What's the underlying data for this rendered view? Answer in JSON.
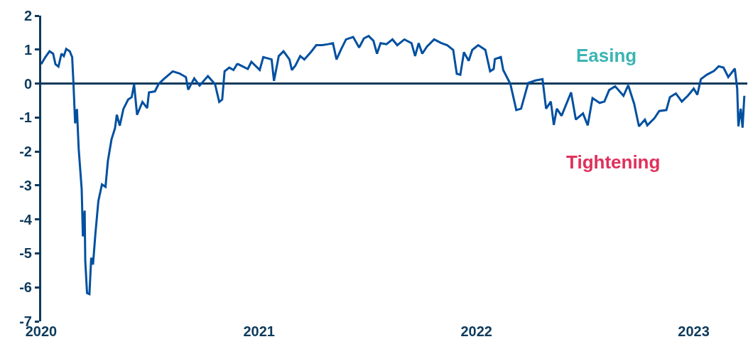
{
  "chart_data": {
    "type": "line",
    "annotations": [
      "Easing",
      "Tightening"
    ],
    "x": [
      "2020-01-01",
      "2020-01-08",
      "2020-01-15",
      "2020-01-21",
      "2020-01-25",
      "2020-01-30",
      "2020-02-04",
      "2020-02-08",
      "2020-02-12",
      "2020-02-18",
      "2020-02-22",
      "2020-02-24",
      "2020-02-27",
      "2020-03-01",
      "2020-03-04",
      "2020-03-09",
      "2020-03-11",
      "2020-03-14",
      "2020-03-15",
      "2020-03-18",
      "2020-03-22",
      "2020-03-25",
      "2020-03-28",
      "2020-04-01",
      "2020-04-06",
      "2020-04-12",
      "2020-04-18",
      "2020-04-22",
      "2020-04-28",
      "2020-05-04",
      "2020-05-07",
      "2020-05-12",
      "2020-05-18",
      "2020-05-26",
      "2020-06-01",
      "2020-06-05",
      "2020-06-10",
      "2020-06-19",
      "2020-06-27",
      "2020-06-30",
      "2020-07-10",
      "2020-07-16",
      "2020-07-24",
      "2020-08-09",
      "2020-08-21",
      "2020-08-31",
      "2020-09-04",
      "2020-09-14",
      "2020-09-23",
      "2020-10-07",
      "2020-10-19",
      "2020-10-26",
      "2020-10-31",
      "2020-11-04",
      "2020-11-12",
      "2020-11-19",
      "2020-11-25",
      "2020-11-27",
      "2020-12-13",
      "2020-12-19",
      "2021-01-02",
      "2021-01-08",
      "2021-01-22",
      "2021-01-26",
      "2021-02-03",
      "2021-02-11",
      "2021-02-21",
      "2021-02-25",
      "2021-03-03",
      "2021-03-11",
      "2021-03-18",
      "2021-03-30",
      "2021-04-07",
      "2021-04-17",
      "2021-04-27",
      "2021-05-05",
      "2021-05-11",
      "2021-05-19",
      "2021-05-27",
      "2021-06-08",
      "2021-06-18",
      "2021-06-26",
      "2021-07-04",
      "2021-07-12",
      "2021-07-18",
      "2021-07-24",
      "2021-08-03",
      "2021-08-13",
      "2021-08-21",
      "2021-09-02",
      "2021-09-14",
      "2021-09-20",
      "2021-09-26",
      "2021-10-02",
      "2021-10-10",
      "2021-10-22",
      "2021-11-03",
      "2021-11-13",
      "2021-11-23",
      "2021-11-29",
      "2021-12-05",
      "2021-12-11",
      "2021-12-19",
      "2021-12-25",
      "2022-01-04",
      "2022-01-16",
      "2022-01-24",
      "2022-01-30",
      "2022-02-01",
      "2022-02-11",
      "2022-02-15",
      "2022-02-27",
      "2022-03-09",
      "2022-03-17",
      "2022-03-29",
      "2022-04-10",
      "2022-04-22",
      "2022-04-28",
      "2022-05-06",
      "2022-05-11",
      "2022-05-16",
      "2022-05-24",
      "2022-06-09",
      "2022-06-17",
      "2022-06-29",
      "2022-07-07",
      "2022-07-15",
      "2022-07-27",
      "2022-08-04",
      "2022-08-12",
      "2022-08-22",
      "2022-09-05",
      "2022-09-13",
      "2022-09-23",
      "2022-10-01",
      "2022-10-11",
      "2022-10-15",
      "2022-10-27",
      "2022-11-04",
      "2022-11-16",
      "2022-11-22",
      "2022-12-02",
      "2022-12-12",
      "2022-12-22",
      "2023-01-01",
      "2023-01-07",
      "2023-01-13",
      "2023-01-23",
      "2023-02-04",
      "2023-02-12",
      "2023-02-20",
      "2023-02-28",
      "2023-03-11",
      "2023-03-15",
      "2023-03-17",
      "2023-03-21",
      "2023-03-24",
      "2023-03-27"
    ],
    "series": [
      {
        "color": "#0050a0",
        "values": [
          0.57,
          0.78,
          0.95,
          0.88,
          0.57,
          0.5,
          0.88,
          0.81,
          1.02,
          0.95,
          0.78,
          0.08,
          -1.17,
          -0.75,
          -1.93,
          -3.11,
          -4.5,
          -3.74,
          -5.22,
          -6.17,
          -6.2,
          -5.13,
          -5.33,
          -4.43,
          -3.46,
          -2.97,
          -3.04,
          -2.28,
          -1.65,
          -1.31,
          -0.92,
          -1.24,
          -0.75,
          -0.47,
          -0.4,
          -0.02,
          -0.92,
          -0.54,
          -0.72,
          -0.26,
          -0.23,
          -0.02,
          0.12,
          0.36,
          0.29,
          0.19,
          -0.18,
          0.15,
          -0.06,
          0.22,
          -0.02,
          -0.54,
          -0.47,
          0.36,
          0.47,
          0.4,
          0.57,
          0.57,
          0.43,
          0.64,
          0.4,
          0.78,
          0.71,
          0.08,
          0.81,
          0.95,
          0.71,
          0.4,
          0.53,
          0.81,
          0.71,
          0.95,
          1.13,
          1.13,
          1.16,
          1.19,
          0.71,
          1.02,
          1.3,
          1.37,
          1.06,
          1.33,
          1.4,
          1.26,
          0.88,
          1.19,
          1.16,
          1.3,
          1.13,
          1.3,
          1.19,
          0.81,
          1.19,
          0.88,
          1.09,
          1.3,
          1.19,
          1.13,
          0.99,
          0.29,
          0.26,
          0.92,
          0.67,
          0.99,
          1.13,
          0.99,
          0.36,
          0.43,
          0.72,
          0.78,
          0.4,
          -0.01,
          -0.78,
          -0.74,
          0.02,
          0.09,
          0.13,
          -0.74,
          -0.53,
          -1.22,
          -0.74,
          -0.95,
          -0.26,
          -1.06,
          -0.88,
          -1.23,
          -0.43,
          -0.57,
          -0.53,
          -0.19,
          -0.08,
          -0.36,
          -0.05,
          -0.6,
          -1.26,
          -1.06,
          -1.23,
          -1.02,
          -0.81,
          -0.78,
          -0.4,
          -0.29,
          -0.53,
          -0.36,
          -0.15,
          -0.33,
          0.13,
          0.26,
          0.37,
          0.51,
          0.47,
          0.19,
          0.44,
          -0.15,
          -1.26,
          -0.74,
          -1.3,
          -0.36
        ]
      }
    ],
    "xlim": [
      "2020-01-01",
      "2023-04-01"
    ],
    "xticks": [
      {
        "value": "2020-01-01",
        "label": "2020"
      },
      {
        "value": "2021-01-01",
        "label": "2021"
      },
      {
        "value": "2022-01-01",
        "label": "2022"
      },
      {
        "value": "2023-01-01",
        "label": "2023"
      }
    ],
    "ylim": [
      -7,
      2
    ],
    "yticks": [
      -7,
      -6,
      -5,
      -4,
      -3,
      -2,
      -1,
      0,
      1,
      2
    ],
    "ref_lines": [
      {
        "axis": "y",
        "value": 0,
        "color": "#0d3a5c"
      }
    ],
    "grid": false,
    "marker": "none",
    "line_style": "solid"
  }
}
